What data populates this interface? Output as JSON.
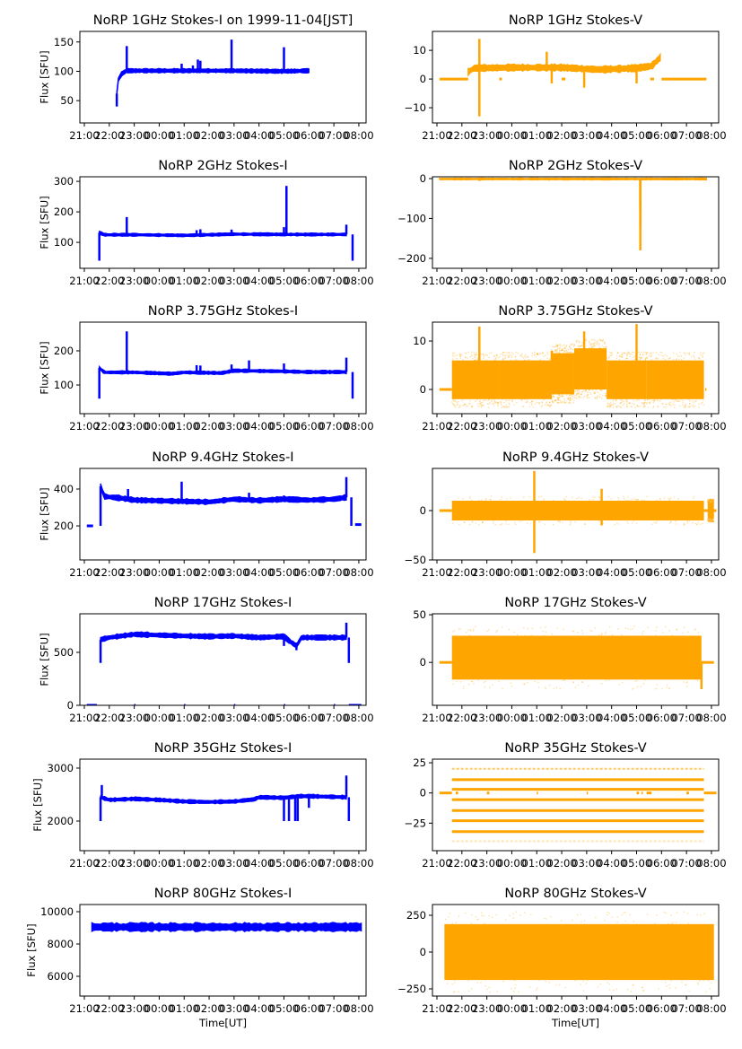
{
  "figure": {
    "x_tick_labels": [
      "21:00",
      "22:00",
      "23:00",
      "00:00",
      "01:00",
      "02:00",
      "03:00",
      "04:00",
      "05:00",
      "06:00",
      "07:00",
      "08:00"
    ],
    "x_label_bottom": "Time[UT]",
    "y_label_left": "Flux [SFU]",
    "colors": {
      "stokes_i": "#0000ff",
      "stokes_v": "#ffa500",
      "axes": "#000000"
    }
  },
  "chart_data": [
    {
      "type": "scatter",
      "id": "1ghz-i",
      "title": "NoRP 1GHz Stokes-I on 1999-11-04[JST]",
      "xlabel": "",
      "ylabel": "Flux [SFU]",
      "column": "left",
      "row": 0,
      "x_unit": "hours since 21:00 UT",
      "xlim": [
        -0.18,
        11.29
      ],
      "ylim": [
        12,
        168
      ],
      "yticks": [
        50,
        100,
        150
      ],
      "ytick_labels": [
        "50",
        "100",
        "150"
      ],
      "grid": false,
      "color": "#0000ff",
      "baseline": [
        [
          1.3,
          62
        ],
        [
          1.35,
          85
        ],
        [
          1.5,
          96
        ],
        [
          1.7,
          101
        ],
        [
          3.0,
          101
        ],
        [
          6.0,
          101
        ],
        [
          8.0,
          100
        ],
        [
          9.0,
          101
        ]
      ],
      "band": 3,
      "spikes": [
        [
          1.3,
          40
        ],
        [
          1.7,
          143
        ],
        [
          3.9,
          113
        ],
        [
          4.35,
          110
        ],
        [
          4.55,
          120
        ],
        [
          4.65,
          118
        ],
        [
          5.9,
          154
        ],
        [
          8.0,
          141
        ]
      ],
      "gaps": []
    },
    {
      "type": "scatter",
      "id": "1ghz-v",
      "title": "NoRP 1GHz Stokes-V",
      "xlabel": "",
      "ylabel": "",
      "column": "right",
      "row": 0,
      "x_unit": "hours since 21:00 UT",
      "xlim": [
        -0.18,
        11.29
      ],
      "ylim": [
        -15.3,
        16.6
      ],
      "yticks": [
        -10,
        0,
        10
      ],
      "ytick_labels": [
        "−10",
        "0",
        "10"
      ],
      "grid": false,
      "color": "#ffa500",
      "baseline": [
        [
          1.25,
          2.5
        ],
        [
          1.5,
          3.8
        ],
        [
          3.0,
          4.0
        ],
        [
          5.0,
          4.0
        ],
        [
          6.5,
          3.3
        ],
        [
          8.0,
          3.8
        ],
        [
          8.6,
          4.5
        ],
        [
          8.95,
          7.5
        ]
      ],
      "band": 1,
      "spikes": [
        [
          1.7,
          -13
        ],
        [
          1.7,
          14
        ],
        [
          4.4,
          9.5
        ],
        [
          4.6,
          -1.5
        ],
        [
          5.9,
          -3
        ],
        [
          8.0,
          -1.5
        ]
      ],
      "flat_segments": [
        [
          0.1,
          1.25,
          0
        ],
        [
          2.5,
          2.6,
          0
        ],
        [
          5.0,
          5.15,
          0
        ],
        [
          8.55,
          8.7,
          0
        ],
        [
          9.0,
          10.8,
          0
        ]
      ]
    },
    {
      "type": "scatter",
      "id": "2ghz-i",
      "title": "NoRP 2GHz Stokes-I",
      "xlabel": "",
      "ylabel": "Flux [SFU]",
      "column": "left",
      "row": 1,
      "x_unit": "hours since 21:00 UT",
      "xlim": [
        -0.18,
        11.29
      ],
      "ylim": [
        15,
        315
      ],
      "yticks": [
        100,
        200,
        300
      ],
      "ytick_labels": [
        "100",
        "200",
        "300"
      ],
      "grid": false,
      "color": "#0000ff",
      "baseline": [
        [
          0.6,
          132
        ],
        [
          0.8,
          125
        ],
        [
          2.0,
          125
        ],
        [
          4.0,
          123
        ],
        [
          6.0,
          127
        ],
        [
          8.0,
          126
        ],
        [
          10.0,
          126
        ],
        [
          10.5,
          126
        ]
      ],
      "band": 4,
      "spikes": [
        [
          0.6,
          40
        ],
        [
          1.7,
          183
        ],
        [
          4.5,
          140
        ],
        [
          4.65,
          143
        ],
        [
          5.9,
          142
        ],
        [
          8.0,
          150
        ],
        [
          8.1,
          285
        ],
        [
          10.5,
          158
        ],
        [
          10.75,
          40
        ]
      ],
      "gaps": []
    },
    {
      "type": "scatter",
      "id": "2ghz-v",
      "title": "NoRP 2GHz Stokes-V",
      "xlabel": "",
      "ylabel": "",
      "column": "right",
      "row": 1,
      "x_unit": "hours since 21:00 UT",
      "xlim": [
        -0.18,
        11.29
      ],
      "ylim": [
        -225,
        4.5
      ],
      "yticks": [
        -200,
        -100,
        0
      ],
      "ytick_labels": [
        "−200",
        "−100",
        "0"
      ],
      "grid": false,
      "color": "#ffa500",
      "baseline": [
        [
          0.1,
          -1
        ],
        [
          10.8,
          -1
        ]
      ],
      "band": 2,
      "spikes": [
        [
          1.7,
          -6
        ],
        [
          4.5,
          -5
        ],
        [
          8.15,
          -180
        ],
        [
          8.15,
          -120
        ],
        [
          8.15,
          -85
        ],
        [
          8.15,
          -65
        ],
        [
          8.15,
          -18
        ]
      ],
      "flat_segments": []
    },
    {
      "type": "scatter",
      "id": "3.75ghz-i",
      "title": "NoRP 3.75GHz Stokes-I",
      "xlabel": "",
      "ylabel": "Flux [SFU]",
      "column": "left",
      "row": 2,
      "x_unit": "hours since 21:00 UT",
      "xlim": [
        -0.18,
        11.29
      ],
      "ylim": [
        16,
        284
      ],
      "yticks": [
        100,
        200
      ],
      "ytick_labels": [
        "100",
        "200"
      ],
      "grid": false,
      "color": "#0000ff",
      "baseline": [
        [
          0.6,
          150
        ],
        [
          0.8,
          137
        ],
        [
          2.0,
          137
        ],
        [
          3.5,
          133
        ],
        [
          4.0,
          137
        ],
        [
          5.5,
          135
        ],
        [
          6.0,
          142
        ],
        [
          8.0,
          140
        ],
        [
          9.0,
          138
        ],
        [
          10.5,
          138
        ]
      ],
      "band": 4,
      "spikes": [
        [
          0.6,
          60
        ],
        [
          1.7,
          257
        ],
        [
          4.5,
          158
        ],
        [
          4.65,
          157
        ],
        [
          5.9,
          160
        ],
        [
          6.6,
          172
        ],
        [
          8.0,
          163
        ],
        [
          10.5,
          180
        ],
        [
          10.75,
          60
        ]
      ],
      "gaps": []
    },
    {
      "type": "scatter",
      "id": "3.75ghz-v",
      "title": "NoRP 3.75GHz Stokes-V",
      "xlabel": "",
      "ylabel": "",
      "column": "right",
      "row": 2,
      "x_unit": "hours since 21:00 UT",
      "xlim": [
        -0.18,
        11.29
      ],
      "ylim": [
        -5,
        13.9
      ],
      "yticks": [
        0,
        10
      ],
      "ytick_labels": [
        "0",
        "10"
      ],
      "grid": false,
      "color": "#ffa500",
      "noise_segments": [
        [
          0.6,
          2.5,
          2,
          6,
          -2
        ],
        [
          2.5,
          4.6,
          2,
          6,
          -2
        ],
        [
          4.6,
          5.5,
          3,
          7.5,
          -1
        ],
        [
          5.5,
          6.8,
          4,
          8.5,
          0
        ],
        [
          6.8,
          8.4,
          2,
          6,
          -2
        ],
        [
          8.4,
          10.7,
          2,
          6,
          -2
        ]
      ],
      "spikes": [
        [
          1.7,
          13
        ],
        [
          5.9,
          12
        ],
        [
          8.0,
          13.5
        ],
        [
          4.6,
          8
        ]
      ],
      "flat_segments": [
        [
          0.1,
          0.6,
          0
        ],
        [
          10.75,
          10.8,
          0
        ]
      ]
    },
    {
      "type": "scatter",
      "id": "9.4ghz-i",
      "title": "NoRP 9.4GHz Stokes-I",
      "xlabel": "",
      "ylabel": "Flux [SFU]",
      "column": "left",
      "row": 3,
      "x_unit": "hours since 21:00 UT",
      "xlim": [
        -0.18,
        11.29
      ],
      "ylim": [
        15,
        512
      ],
      "yticks": [
        200,
        400
      ],
      "ytick_labels": [
        "200",
        "400"
      ],
      "grid": false,
      "color": "#0000ff",
      "baseline": [
        [
          0.65,
          415
        ],
        [
          0.8,
          360
        ],
        [
          1.5,
          350
        ],
        [
          2.0,
          340
        ],
        [
          4.0,
          333
        ],
        [
          5.0,
          330
        ],
        [
          6.0,
          345
        ],
        [
          7.0,
          338
        ],
        [
          8.0,
          345
        ],
        [
          9.0,
          340
        ],
        [
          10.0,
          345
        ],
        [
          10.5,
          355
        ]
      ],
      "band": 12,
      "spikes": [
        [
          1.75,
          400
        ],
        [
          3.9,
          440
        ],
        [
          6.6,
          380
        ],
        [
          8.0,
          365
        ],
        [
          10.5,
          465
        ],
        [
          0.65,
          200
        ],
        [
          10.7,
          200
        ]
      ],
      "flat_segments": [
        [
          0.1,
          0.35,
          200
        ],
        [
          10.85,
          11.1,
          207
        ]
      ]
    },
    {
      "type": "scatter",
      "id": "9.4ghz-v",
      "title": "NoRP 9.4GHz Stokes-V",
      "xlabel": "",
      "ylabel": "",
      "column": "right",
      "row": 3,
      "x_unit": "hours since 21:00 UT",
      "xlim": [
        -0.18,
        11.29
      ],
      "ylim": [
        -50,
        42.7
      ],
      "yticks": [
        -50,
        0
      ],
      "ytick_labels": [
        "−50",
        "0"
      ],
      "grid": false,
      "color": "#ffa500",
      "noise_segments": [
        [
          0.6,
          10.7,
          0,
          10,
          -10
        ],
        [
          10.85,
          11.1,
          0,
          8,
          -8
        ]
      ],
      "spikes": [
        [
          3.9,
          40
        ],
        [
          3.9,
          -43
        ],
        [
          6.6,
          22
        ],
        [
          6.6,
          -15
        ]
      ],
      "flat_segments": [
        [
          0.1,
          0.6,
          0
        ],
        [
          10.7,
          11.2,
          0
        ]
      ]
    },
    {
      "type": "scatter",
      "id": "17ghz-i",
      "title": "NoRP 17GHz Stokes-I",
      "xlabel": "",
      "ylabel": "Flux [SFU]",
      "column": "left",
      "row": 4,
      "x_unit": "hours since 21:00 UT",
      "xlim": [
        -0.18,
        11.29
      ],
      "ylim": [
        0,
        864
      ],
      "yticks": [
        0,
        500
      ],
      "ytick_labels": [
        "0",
        "500"
      ],
      "grid": false,
      "color": "#0000ff",
      "baseline": [
        [
          0.65,
          620
        ],
        [
          1.0,
          640
        ],
        [
          2.0,
          670
        ],
        [
          4.0,
          655
        ],
        [
          5.0,
          650
        ],
        [
          6.0,
          655
        ],
        [
          7.0,
          640
        ],
        [
          8.0,
          650
        ],
        [
          8.2,
          610
        ],
        [
          8.5,
          560
        ],
        [
          8.7,
          640
        ],
        [
          10.5,
          640
        ]
      ],
      "band": 20,
      "spikes": [
        [
          0.65,
          400
        ],
        [
          10.5,
          780
        ],
        [
          10.6,
          400
        ],
        [
          8.0,
          560
        ],
        [
          8.5,
          520
        ]
      ],
      "flat_segments": [
        [
          0.1,
          0.5,
          0
        ],
        [
          2.0,
          2.05,
          0
        ],
        [
          4.0,
          4.05,
          0
        ],
        [
          6.0,
          6.05,
          0
        ],
        [
          8.0,
          8.05,
          0
        ],
        [
          10.0,
          10.05,
          0
        ],
        [
          10.6,
          11.1,
          0
        ]
      ]
    },
    {
      "type": "scatter",
      "id": "17ghz-v",
      "title": "NoRP 17GHz Stokes-V",
      "xlabel": "",
      "ylabel": "",
      "column": "right",
      "row": 4,
      "x_unit": "hours since 21:00 UT",
      "xlim": [
        -0.18,
        11.29
      ],
      "ylim": [
        -45,
        51
      ],
      "yticks": [
        0,
        50
      ],
      "ytick_labels": [
        "0",
        "50"
      ],
      "grid": false,
      "color": "#ffa500",
      "noise_segments": [
        [
          0.6,
          10.6,
          3,
          28,
          -18
        ]
      ],
      "spikes": [
        [
          10.6,
          -28
        ]
      ],
      "flat_segments": [
        [
          0.1,
          0.6,
          0
        ],
        [
          10.6,
          11.1,
          0
        ]
      ]
    },
    {
      "type": "scatter",
      "id": "35ghz-i",
      "title": "NoRP 35GHz Stokes-I",
      "xlabel": "",
      "ylabel": "Flux [SFU]",
      "column": "left",
      "row": 5,
      "x_unit": "hours since 21:00 UT",
      "xlim": [
        -0.18,
        11.29
      ],
      "ylim": [
        1441,
        3169
      ],
      "yticks": [
        2000,
        3000
      ],
      "ytick_labels": [
        "2000",
        "3000"
      ],
      "grid": false,
      "color": "#0000ff",
      "baseline": [
        [
          0.65,
          2450
        ],
        [
          1.0,
          2400
        ],
        [
          2.0,
          2420
        ],
        [
          3.0,
          2400
        ],
        [
          4.0,
          2370
        ],
        [
          5.0,
          2360
        ],
        [
          6.0,
          2370
        ],
        [
          6.8,
          2410
        ],
        [
          7.0,
          2450
        ],
        [
          8.0,
          2440
        ],
        [
          8.6,
          2470
        ],
        [
          9.0,
          2470
        ],
        [
          10.5,
          2450
        ]
      ],
      "band": 30,
      "spikes": [
        [
          0.65,
          2000
        ],
        [
          0.7,
          2680
        ],
        [
          8.0,
          2000
        ],
        [
          8.2,
          2000
        ],
        [
          8.45,
          2000
        ],
        [
          8.55,
          2000
        ],
        [
          9.0,
          2250
        ],
        [
          10.5,
          2860
        ],
        [
          10.6,
          2000
        ]
      ],
      "flat_segments": []
    },
    {
      "type": "scatter",
      "id": "35ghz-v",
      "title": "NoRP 35GHz Stokes-V",
      "xlabel": "",
      "ylabel": "",
      "column": "right",
      "row": 5,
      "x_unit": "hours since 21:00 UT",
      "xlim": [
        -0.18,
        11.29
      ],
      "ylim": [
        -47.8,
        28
      ],
      "yticks": [
        -25,
        0,
        25
      ],
      "ytick_labels": [
        "−25",
        "0",
        "25"
      ],
      "grid": false,
      "color": "#ffa500",
      "levels": [
        20,
        11,
        3,
        -5.5,
        -14.5,
        -23,
        -32,
        -40
      ],
      "level_span": [
        0.6,
        10.7
      ],
      "flat_segments": [
        [
          0.1,
          0.6,
          0
        ],
        [
          0.75,
          0.85,
          0
        ],
        [
          2.0,
          2.1,
          0
        ],
        [
          4.0,
          4.05,
          0
        ],
        [
          6.0,
          6.05,
          0
        ],
        [
          8.0,
          8.1,
          0
        ],
        [
          8.2,
          8.25,
          0
        ],
        [
          8.4,
          8.6,
          0
        ],
        [
          10.0,
          10.1,
          0
        ],
        [
          10.7,
          11.2,
          0
        ]
      ]
    },
    {
      "type": "scatter",
      "id": "80ghz-i",
      "title": "NoRP 80GHz Stokes-I",
      "xlabel": "Time[UT]",
      "ylabel": "Flux [SFU]",
      "column": "left",
      "row": 6,
      "x_unit": "hours since 21:00 UT",
      "xlim": [
        -0.18,
        11.29
      ],
      "ylim": [
        4778,
        10444
      ],
      "yticks": [
        6000,
        8000,
        10000
      ],
      "ytick_labels": [
        "6000",
        "8000",
        "10000"
      ],
      "grid": false,
      "color": "#0000ff",
      "baseline": [
        [
          0.3,
          9050
        ],
        [
          11.1,
          9050
        ]
      ],
      "band": 220,
      "spikes": [],
      "flat_segments": []
    },
    {
      "type": "scatter",
      "id": "80ghz-v",
      "title": "NoRP 80GHz Stokes-V",
      "xlabel": "Time[UT]",
      "ylabel": "",
      "column": "right",
      "row": 6,
      "x_unit": "hours since 21:00 UT",
      "xlim": [
        -0.18,
        11.29
      ],
      "ylim": [
        -299,
        323
      ],
      "yticks": [
        -250,
        0,
        250
      ],
      "ytick_labels": [
        "−250",
        "0",
        "250"
      ],
      "grid": false,
      "color": "#ffa500",
      "noise_segments": [
        [
          0.3,
          11.1,
          0,
          190,
          -190
        ]
      ],
      "spikes": [],
      "flat_segments": []
    }
  ]
}
